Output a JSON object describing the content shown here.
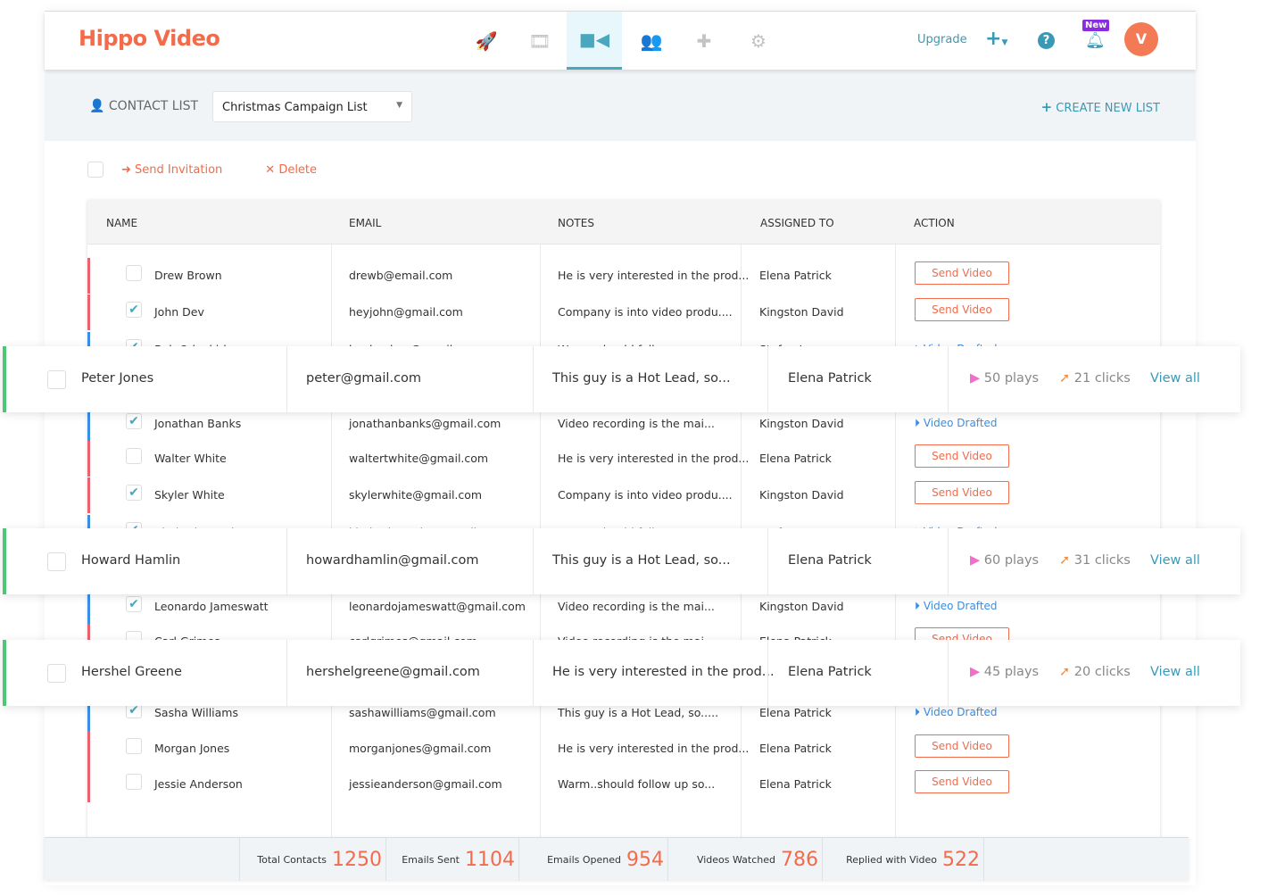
{
  "brand": {
    "logo": "Hippo Video",
    "accent": "#f26b4b",
    "primary": "#3a9ab5"
  },
  "nav": [
    {
      "icon": "rocket-icon"
    },
    {
      "icon": "film-icon"
    },
    {
      "icon": "video-camera-contact-icon",
      "active": true
    },
    {
      "icon": "users-icon"
    },
    {
      "icon": "puzzle-icon"
    },
    {
      "icon": "gear-icon"
    }
  ],
  "header": {
    "upgrade": "Upgrade",
    "new_badge": "New",
    "avatar": "V"
  },
  "subbar": {
    "label": "CONTACT LIST",
    "selected_list": "Christmas Campaign List",
    "create": "CREATE NEW LIST"
  },
  "bulk": {
    "send": "Send Invitation",
    "delete": "Delete"
  },
  "table": {
    "headers": [
      "NAME",
      "EMAIL",
      "NOTES",
      "ASSIGNED TO",
      "ACTION"
    ],
    "rows": [
      {
        "name": "Drew Brown",
        "email": "drewb@email.com",
        "notes": "He is very interested in the prod...",
        "assigned": "Elena Patrick",
        "action": "Send Video",
        "checked": false
      },
      {
        "name": "John Dev",
        "email": "heyjohn@gmail.com",
        "notes": "Company is into video produ....",
        "assigned": "Kingston David",
        "action": "Send Video",
        "checked": true
      },
      {
        "name": "Bob Odenkirk",
        "email": "heyheyhey@gmail.com",
        "notes": "Warm..should follow up so...",
        "assigned": "Stefan Jones",
        "action": "Video Drafted",
        "checked": true
      },
      {
        "name": "Jonathan Banks",
        "email": "jonathanbanks@gmail.com",
        "notes": "Video recording is the mai...",
        "assigned": "Kingston David",
        "action": "Video Drafted",
        "checked": true
      },
      {
        "name": "Walter White",
        "email": "waltertwhite@gmail.com",
        "notes": "He is very interested in the prod...",
        "assigned": "Elena Patrick",
        "action": "Send Video",
        "checked": false
      },
      {
        "name": "Skyler White",
        "email": "skylerwhite@gmail.com",
        "notes": "Company is into video produ....",
        "assigned": "Kingston David",
        "action": "Send Video",
        "checked": true
      },
      {
        "name": "Kimberly Wexler",
        "email": "kimberlywexler@gmail.com",
        "notes": "Warm..should follow up so...",
        "assigned": "Stefan Jones",
        "action": "Video Drafted",
        "checked": true
      },
      {
        "name": "Leonardo Jameswatt",
        "email": "leonardojameswatt@gmail.com",
        "notes": "Video recording is the mai...",
        "assigned": "Kingston David",
        "action": "Video Drafted",
        "checked": true
      },
      {
        "name": "Carl Grimes",
        "email": "carlgrimes@gmail.com",
        "notes": "Video recording is the mai.....",
        "assigned": "Elena Patrick",
        "action": "Send Video",
        "checked": false
      },
      {
        "name": "Sasha Williams",
        "email": "sashawilliams@gmail.com",
        "notes": "This guy is a Hot Lead, so.....",
        "assigned": "Elena Patrick",
        "action": "Video Drafted",
        "checked": true
      },
      {
        "name": "Morgan Jones",
        "email": "morganjones@gmail.com",
        "notes": "He is very interested in the prod...",
        "assigned": "Elena Patrick",
        "action": "Send Video",
        "checked": false
      },
      {
        "name": "Jessie Anderson",
        "email": "jessieanderson@gmail.com",
        "notes": "Warm..should follow up so...",
        "assigned": "Elena Patrick",
        "action": "Send Video",
        "checked": false
      }
    ]
  },
  "highlighted": [
    {
      "name": "Peter Jones",
      "email": "peter@gmail.com",
      "notes": "This guy is a Hot Lead, so...",
      "assigned": "Elena Patrick",
      "plays": "50 plays",
      "clicks": "21 clicks",
      "view": "View all"
    },
    {
      "name": "Howard Hamlin",
      "email": "howardhamlin@gmail.com",
      "notes": "This guy is a Hot Lead, so...",
      "assigned": "Elena Patrick",
      "plays": "60 plays",
      "clicks": "31 clicks",
      "view": "View all"
    },
    {
      "name": "Hershel Greene",
      "email": "hershelgreene@gmail.com",
      "notes": "He is very interested in the prod...",
      "assigned": "Elena Patrick",
      "plays": "45 plays",
      "clicks": "20 clicks",
      "view": "View all"
    }
  ],
  "stats": [
    {
      "label": "Total Contacts",
      "value": "1250"
    },
    {
      "label": "Emails Sent",
      "value": "1104"
    },
    {
      "label": "Emails Opened",
      "value": "954"
    },
    {
      "label": "Videos Watched",
      "value": "786"
    },
    {
      "label": "Replied with Video",
      "value": "522"
    }
  ]
}
